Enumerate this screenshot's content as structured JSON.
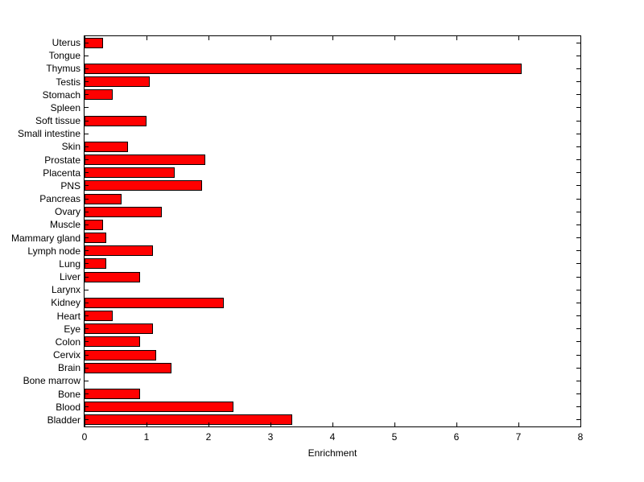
{
  "figure": {
    "background": "#ffffff"
  },
  "chart_data": {
    "type": "bar",
    "orientation": "horizontal",
    "title": "",
    "xlabel": "Enrichment",
    "ylabel": "",
    "xlim": [
      0,
      8
    ],
    "xticks": [
      0,
      1,
      2,
      3,
      4,
      5,
      6,
      7,
      8
    ],
    "grid": false,
    "legend": false,
    "bar_color": "#ff0000",
    "bar_edge_color": "#000000",
    "categories": [
      "Uterus",
      "Tongue",
      "Thymus",
      "Testis",
      "Stomach",
      "Spleen",
      "Soft tissue",
      "Small intestine",
      "Skin",
      "Prostate",
      "Placenta",
      "PNS",
      "Pancreas",
      "Ovary",
      "Muscle",
      "Mammary gland",
      "Lymph node",
      "Lung",
      "Liver",
      "Larynx",
      "Kidney",
      "Heart",
      "Eye",
      "Colon",
      "Cervix",
      "Brain",
      "Bone marrow",
      "Bone",
      "Blood",
      "Bladder"
    ],
    "values": [
      0.3,
      0,
      7.05,
      1.05,
      0.45,
      0,
      1.0,
      0,
      0.7,
      1.95,
      1.45,
      1.9,
      0.6,
      1.25,
      0.3,
      0.35,
      1.1,
      0.35,
      0.9,
      0,
      2.25,
      0.45,
      1.1,
      0.9,
      1.15,
      1.4,
      0,
      0.9,
      2.4,
      3.35
    ]
  }
}
